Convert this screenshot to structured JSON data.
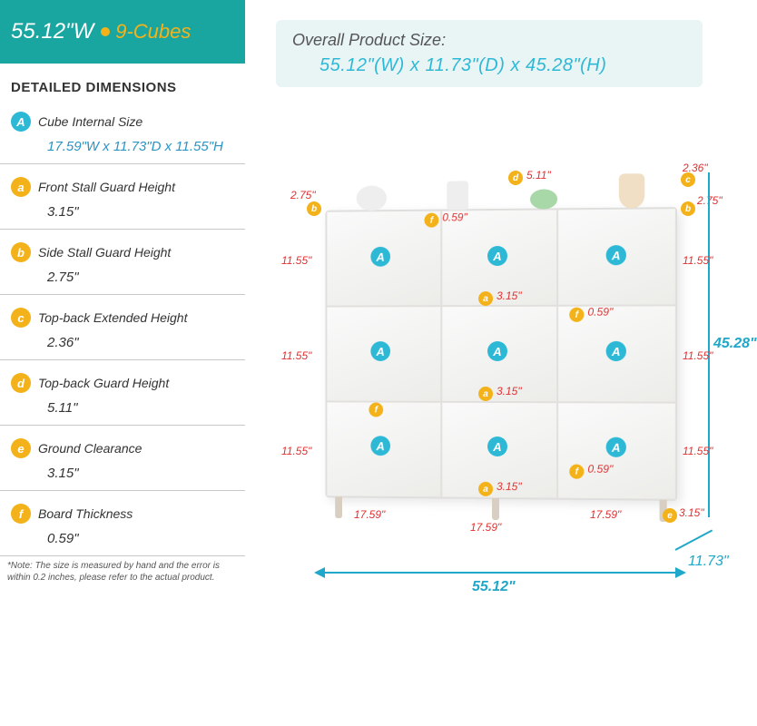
{
  "colors": {
    "teal": "#1aa6a0",
    "orange": "#f4b21a",
    "cyan": "#2db9d6",
    "red": "#e03030",
    "lightTeal": "#35c3c3",
    "overallBg": "#e9f4f5",
    "overallBorder": "#2db9d6",
    "textGray": "#555555",
    "cube_internal_text": "#2b94c4"
  },
  "header": {
    "width": "55.12\"W",
    "cubes": "9-Cubes"
  },
  "dd_title": "DETAILED DIMENSIONS",
  "specs": [
    {
      "tag": "A",
      "tag_bg": "#2db9d6",
      "label": "Cube Internal Size",
      "value": "17.59\"W x 11.73\"D x 11.55\"H",
      "value_color": "#2b94c4"
    },
    {
      "tag": "a",
      "tag_bg": "#f4b21a",
      "label": "Front Stall Guard Height",
      "value": "3.15\"",
      "value_color": "#333"
    },
    {
      "tag": "b",
      "tag_bg": "#f4b21a",
      "label": "Side Stall Guard Height",
      "value": "2.75\"",
      "value_color": "#333"
    },
    {
      "tag": "c",
      "tag_bg": "#f4b21a",
      "label": "Top-back Extended Height",
      "value": "2.36\"",
      "value_color": "#333"
    },
    {
      "tag": "d",
      "tag_bg": "#f4b21a",
      "label": "Top-back Guard Height",
      "value": "5.11\"",
      "value_color": "#333"
    },
    {
      "tag": "e",
      "tag_bg": "#f4b21a",
      "label": "Ground Clearance",
      "value": "3.15\"",
      "value_color": "#333"
    },
    {
      "tag": "f",
      "tag_bg": "#f4b21a",
      "label": "Board Thickness",
      "value": "0.59\"",
      "value_color": "#333"
    }
  ],
  "note": "*Note: The size is measured by hand and the error is within 0.2 inches, please refer to the actual product.",
  "overall": {
    "title": "Overall Product Size:",
    "value": "55.12\"(W)  x  11.73\"(D)  x  45.28\"(H)"
  },
  "figure": {
    "total_height": "45.28\"",
    "total_width": "55.12\"",
    "depth": "11.73\"",
    "row_h": "11.55\"",
    "col_w": "17.59\"",
    "front_guard": "3.15\"",
    "side_guard": "2.75\"",
    "top_back_ext": "2.36\"",
    "top_back_guard": "5.11\"",
    "clearance": "3.15\"",
    "thickness": "0.59\""
  }
}
